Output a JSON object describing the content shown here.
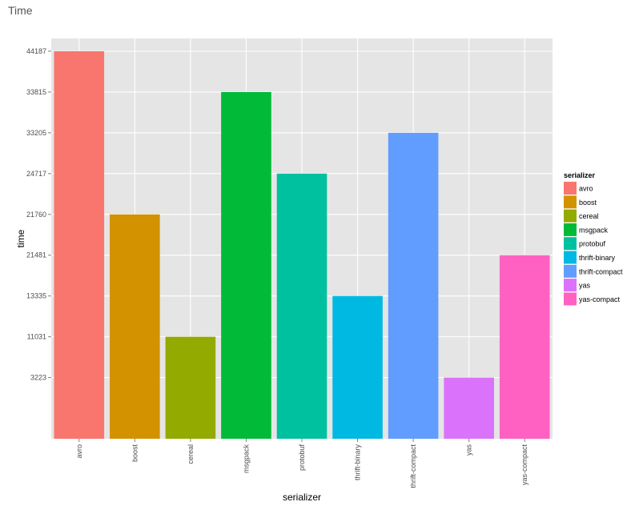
{
  "page": {
    "title": "Time"
  },
  "chart_data": {
    "type": "bar",
    "title": "Time",
    "xlabel": "serializer",
    "ylabel": "time",
    "categories": [
      "avro",
      "boost",
      "cereal",
      "msgpack",
      "protobuf",
      "thrift-binary",
      "thrift-compact",
      "yas",
      "yas-compact"
    ],
    "values": [
      "44187",
      "21760",
      "11031",
      "33815",
      "24717",
      "13335",
      "33205",
      "3223",
      "21481"
    ],
    "y_axis_order": [
      "3223",
      "11031",
      "13335",
      "21481",
      "21760",
      "24717",
      "33205",
      "33815",
      "44187"
    ],
    "y_axis_note": "discrete (factor) y-axis; bar height = rank of value among y_axis_order",
    "grid": true,
    "legend": {
      "title": "serializer",
      "placement": "right",
      "entries": [
        "avro",
        "boost",
        "cereal",
        "msgpack",
        "protobuf",
        "thrift-binary",
        "thrift-compact",
        "yas",
        "yas-compact"
      ]
    },
    "colors": [
      "#F8766D",
      "#D39200",
      "#93AA00",
      "#00BA38",
      "#00C19F",
      "#00B9E3",
      "#619CFF",
      "#DB72FB",
      "#FF61C3"
    ]
  }
}
